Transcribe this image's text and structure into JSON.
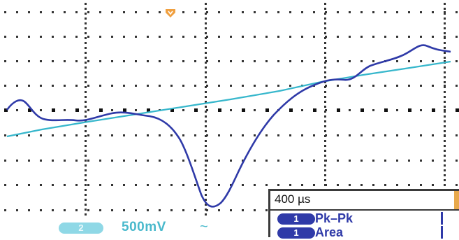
{
  "display": {
    "colors": {
      "channel1_trace": "#2f3aa8",
      "channel2_trace": "#37b7cc",
      "grid": "#333333",
      "trigger_marker": "#f0a040",
      "channel2_label": "#49b9cc"
    },
    "icons": {
      "trigger": "trigger-position-marker-icon",
      "coupling": "ac-coupling-icon"
    }
  },
  "channel_bar": {
    "channel_badge": "2",
    "volts_per_div": "500mV",
    "coupling_symbol": "~"
  },
  "measurements": {
    "timebase": "400 µs",
    "rows": [
      {
        "channel": "1",
        "label": "Pk–Pk"
      },
      {
        "channel": "1",
        "label": "Area"
      }
    ]
  }
}
